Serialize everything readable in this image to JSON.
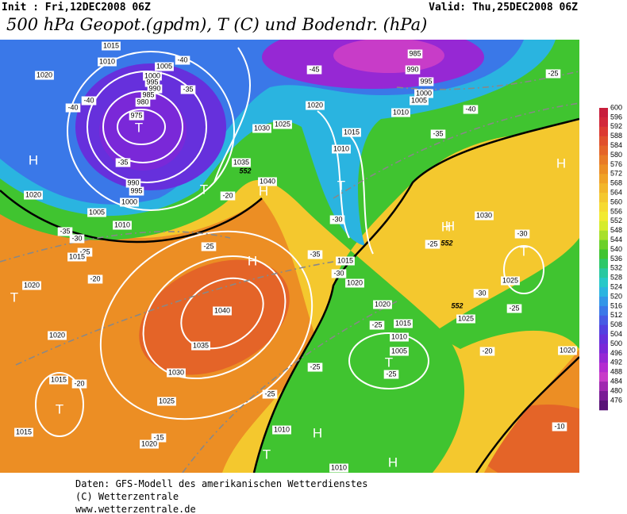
{
  "header": {
    "init": "Init : Fri,12DEC2008 06Z",
    "valid": "Valid: Thu,25DEC2008 06Z",
    "title": "500 hPa Geopot.(gpdm), T (C) und Bodendr. (hPa)"
  },
  "legend": {
    "labels": [
      600,
      596,
      592,
      588,
      584,
      580,
      576,
      572,
      568,
      564,
      560,
      556,
      552,
      548,
      544,
      540,
      536,
      532,
      528,
      524,
      520,
      516,
      512,
      508,
      504,
      500,
      496,
      492,
      488,
      484,
      480,
      476
    ],
    "colors": [
      "#c81e3c",
      "#d2283a",
      "#dc3a32",
      "#e0502c",
      "#e46428",
      "#e87a26",
      "#ec8e24",
      "#f0a226",
      "#f2b62a",
      "#f4c82e",
      "#f6da30",
      "#f2ea30",
      "#d6ec2c",
      "#a8e02a",
      "#6cd02a",
      "#40c430",
      "#2cc868",
      "#28c8a0",
      "#26c8c8",
      "#2ab4e0",
      "#3296e8",
      "#3a78e8",
      "#465ae4",
      "#5240e0",
      "#6630dc",
      "#7a28d8",
      "#9628d4",
      "#b42cd0",
      "#c83cc8",
      "#a028b0",
      "#7a1c96",
      "#5a1478"
    ]
  },
  "map": {
    "labels": [
      "1015",
      "1010",
      "1005",
      "-40",
      "1000",
      "995",
      "990",
      "985",
      "980",
      "975",
      "T",
      "-35",
      "-40",
      "-40",
      "1020",
      "H",
      "-35",
      "990",
      "995",
      "1000",
      "1005",
      "1010",
      "1020",
      "-35",
      "-30",
      "-25",
      "1015",
      "T",
      "-20",
      "H",
      "1040",
      "1035",
      "1030",
      "1025",
      "1020",
      "-45",
      "985",
      "990",
      "995",
      "1000",
      "1005",
      "1010",
      "-40",
      "-25",
      "1015",
      "1010",
      "-35",
      "T",
      "-30",
      "H",
      "1030",
      "H",
      "-25",
      "-30",
      "T",
      "1025",
      "-30",
      "-25",
      "-20",
      "1020",
      "-25",
      "H",
      "1040",
      "1035",
      "1030",
      "1025",
      "1020",
      "T",
      "-20",
      "1020",
      "1015",
      "-20",
      "T",
      "1015",
      "-15",
      "1020",
      "-25",
      "-25",
      "1020",
      "-30",
      "1015",
      "-35",
      "1020",
      "-25",
      "1015",
      "1010",
      "1005",
      "T",
      "-25",
      "1025",
      "1010",
      "H",
      "T",
      "1010",
      "H",
      "-10",
      "552",
      "552",
      "552",
      "H"
    ]
  },
  "footer": {
    "lines": [
      "Daten: GFS-Modell des amerikanischen Wetterdienstes",
      "(C) Wetterzentrale",
      "www.wetterzentrale.de"
    ]
  }
}
